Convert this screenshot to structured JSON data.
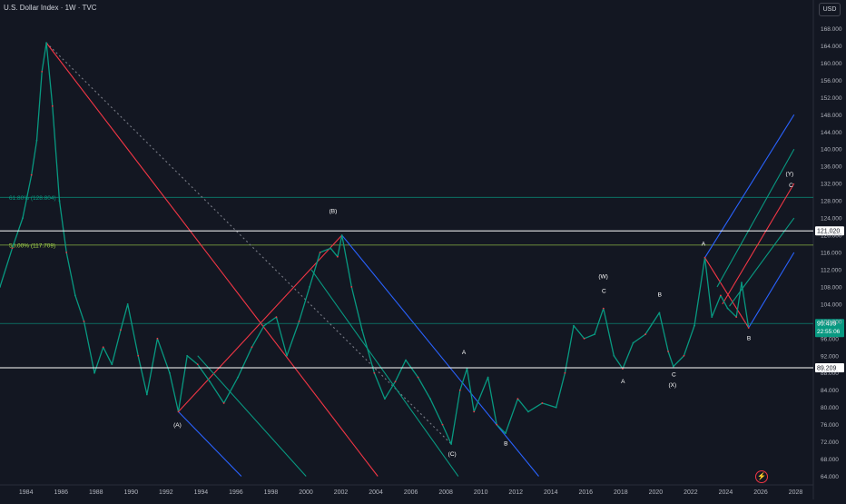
{
  "header": {
    "title": "U.S. Dollar Index · 1W · TVC",
    "currency": "USD"
  },
  "chart_data": {
    "type": "line",
    "title": "U.S. Dollar Index · 1W · TVC",
    "xlabel": "",
    "ylabel": "",
    "xlim": [
      1982.5,
      2029
    ],
    "ylim": [
      62,
      170
    ],
    "grid": false,
    "x_ticks": [
      1984,
      1986,
      1988,
      1990,
      1992,
      1994,
      1996,
      1998,
      2000,
      2002,
      2004,
      2006,
      2008,
      2010,
      2012,
      2014,
      2016,
      2018,
      2020,
      2022,
      2024,
      2026,
      2028
    ],
    "y_ticks": [
      "64.000",
      "68.000",
      "72.000",
      "76.000",
      "80.000",
      "84.000",
      "88.000",
      "92.000",
      "96.000",
      "100.000",
      "104.000",
      "108.000",
      "112.000",
      "116.000",
      "120.000",
      "124.000",
      "128.000",
      "132.000",
      "136.000",
      "140.000",
      "144.000",
      "148.000",
      "152.000",
      "156.000",
      "160.000",
      "164.000",
      "168.000"
    ],
    "series": [
      {
        "values": [
          [
            1982.5,
            108
          ],
          [
            1983.2,
            117
          ],
          [
            1983.8,
            124
          ],
          [
            1984.3,
            134
          ],
          [
            1984.6,
            142
          ],
          [
            1984.9,
            158
          ],
          [
            1985.15,
            164.7
          ],
          [
            1985.5,
            150
          ],
          [
            1985.9,
            128
          ],
          [
            1986.3,
            116
          ],
          [
            1986.8,
            106
          ],
          [
            1987.3,
            100
          ],
          [
            1987.9,
            88
          ],
          [
            1988.4,
            94
          ],
          [
            1988.9,
            90
          ],
          [
            1989.4,
            98
          ],
          [
            1989.8,
            104
          ],
          [
            1990.4,
            92
          ],
          [
            1990.9,
            83
          ],
          [
            1991.5,
            96
          ],
          [
            1992.2,
            88
          ],
          [
            1992.7,
            79
          ],
          [
            1993.2,
            92
          ],
          [
            1993.8,
            90
          ],
          [
            1994.5,
            86
          ],
          [
            1995.3,
            81
          ],
          [
            1996.1,
            87
          ],
          [
            1996.9,
            94
          ],
          [
            1997.6,
            99
          ],
          [
            1998.3,
            101
          ],
          [
            1998.9,
            92
          ],
          [
            1999.6,
            100
          ],
          [
            2000.2,
            108
          ],
          [
            2000.8,
            116
          ],
          [
            2001.4,
            117
          ],
          [
            2001.8,
            115
          ],
          [
            2002.05,
            120
          ],
          [
            2002.6,
            108
          ],
          [
            2003.2,
            98
          ],
          [
            2003.9,
            88
          ],
          [
            2004.5,
            82
          ],
          [
            2005.1,
            86
          ],
          [
            2005.7,
            91
          ],
          [
            2006.4,
            87
          ],
          [
            2007.1,
            82
          ],
          [
            2007.8,
            76
          ],
          [
            2008.3,
            71.5
          ],
          [
            2008.8,
            84
          ],
          [
            2009.2,
            89
          ],
          [
            2009.6,
            79
          ],
          [
            2010.4,
            87
          ],
          [
            2010.9,
            76
          ],
          [
            2011.4,
            74
          ],
          [
            2012.1,
            82
          ],
          [
            2012.7,
            79
          ],
          [
            2013.5,
            81
          ],
          [
            2014.3,
            80
          ],
          [
            2014.8,
            88
          ],
          [
            2015.3,
            99
          ],
          [
            2015.9,
            96
          ],
          [
            2016.5,
            97
          ],
          [
            2017.0,
            103
          ],
          [
            2017.6,
            92
          ],
          [
            2018.1,
            89
          ],
          [
            2018.7,
            95
          ],
          [
            2019.4,
            97
          ],
          [
            2020.2,
            102
          ],
          [
            2020.7,
            93
          ],
          [
            2021.0,
            89.5
          ],
          [
            2021.6,
            92
          ],
          [
            2022.2,
            99
          ],
          [
            2022.8,
            114.8
          ],
          [
            2023.2,
            101
          ],
          [
            2023.7,
            106
          ],
          [
            2024.1,
            103
          ],
          [
            2024.6,
            101
          ],
          [
            2024.9,
            109
          ],
          [
            2025.3,
            98.5
          ]
        ]
      }
    ],
    "horizontal_levels": [
      {
        "value": 121.02,
        "label": "121.020",
        "color": "#ffffff"
      },
      {
        "value": 89.209,
        "label": "89.209",
        "color": "#ffffff"
      },
      {
        "value": 99.499,
        "label": "99.499",
        "color": "#089981"
      }
    ],
    "countdown": "22:55:06",
    "fib_levels": [
      {
        "value": 128.804,
        "label": "61.80% (128.804)",
        "color": "#089981"
      },
      {
        "value": 117.709,
        "label": "50.00% (117.709)",
        "color": "#a5d64a"
      }
    ],
    "wave_labels": [
      {
        "text": "(B)",
        "x": 2001.6,
        "y": 125.2
      },
      {
        "text": "(A)",
        "x": 1992.7,
        "y": 75.5
      },
      {
        "text": "(C)",
        "x": 2008.4,
        "y": 68.8
      },
      {
        "text": "A",
        "x": 2009.0,
        "y": 92.4
      },
      {
        "text": "B",
        "x": 2011.4,
        "y": 71.2
      },
      {
        "text": "(W)",
        "x": 2017.0,
        "y": 110.0
      },
      {
        "text": "C",
        "x": 2017.0,
        "y": 106.6
      },
      {
        "text": "A",
        "x": 2018.1,
        "y": 85.6
      },
      {
        "text": "B",
        "x": 2020.2,
        "y": 105.8
      },
      {
        "text": "C",
        "x": 2021.0,
        "y": 87.2
      },
      {
        "text": "(X)",
        "x": 2021.0,
        "y": 84.8
      },
      {
        "text": "A",
        "x": 2022.7,
        "y": 117.6
      },
      {
        "text": "B",
        "x": 2025.3,
        "y": 95.6
      },
      {
        "text": "(Y)",
        "x": 2027.7,
        "y": 133.8
      },
      {
        "text": "C",
        "x": 2027.7,
        "y": 131.2
      }
    ]
  }
}
